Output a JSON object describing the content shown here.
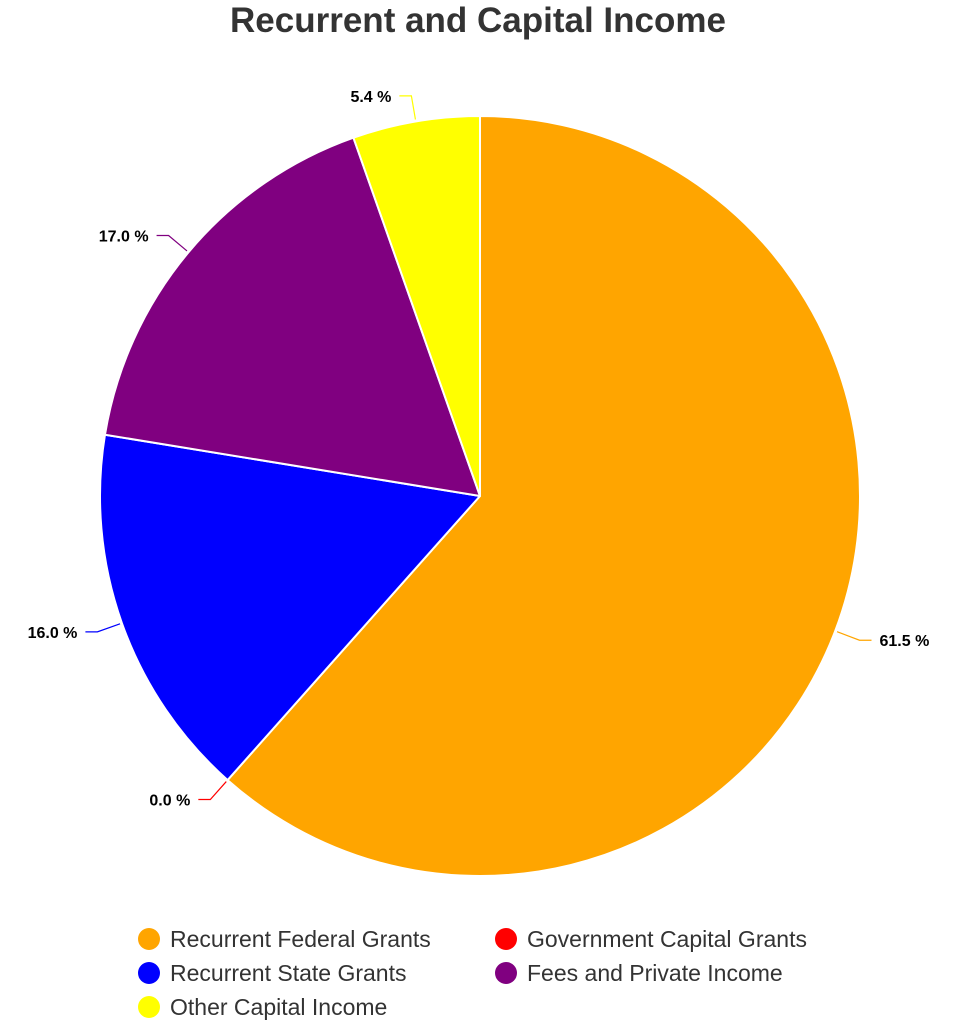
{
  "chart_data": {
    "type": "pie",
    "title": "Recurrent and Capital Income",
    "categories": [
      "Recurrent Federal Grants",
      "Government Capital Grants",
      "Recurrent State Grants",
      "Fees and Private Income",
      "Other Capital Income"
    ],
    "values": [
      61.5,
      0.0,
      16.0,
      17.0,
      5.4
    ],
    "labels": [
      "61.5 %",
      "0.0 %",
      "16.0 %",
      "17.0 %",
      "5.4 %"
    ],
    "colors": [
      "#FFA500",
      "#FF0000",
      "#0000FF",
      "#800080",
      "#FFFF00"
    ],
    "start_angle_deg": 0,
    "direction": "clockwise",
    "legend_position": "bottom"
  }
}
